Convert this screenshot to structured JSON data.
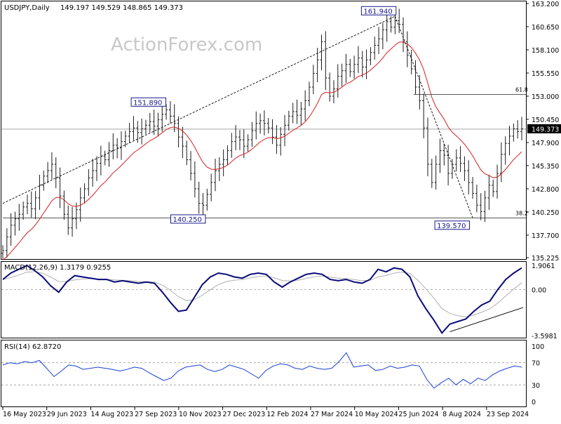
{
  "header": {
    "symbol": "USDJPY,Daily",
    "ohlc": "149.197 149.529 148.865 149.373"
  },
  "watermark": "ActionForex.com",
  "colors": {
    "bars": "#1a1a1a",
    "ema": "#d42020",
    "macd_line": "#0a0a7a",
    "signal_line": "#b0b0b0",
    "rsi_line": "#1a3fd6",
    "grid": "#9a9a9a",
    "label_box": "#1a1a8c",
    "price_tag_bg": "#000000",
    "watermark": "#c8c8c8"
  },
  "chart_data": [
    {
      "type": "candlestick-ohlc",
      "panel": "price",
      "ylim": [
        135.225,
        163.2
      ],
      "y_ticks": [
        "163.200",
        "160.650",
        "158.100",
        "155.550",
        "153.000",
        "150.450",
        "147.900",
        "145.350",
        "142.800",
        "140.250",
        "137.700",
        "135.225"
      ],
      "x_ticks": [
        "16 May 2023",
        "29 Jun 2023",
        "14 Aug 2023",
        "27 Sep 2023",
        "10 Nov 2023",
        "27 Dec 2023",
        "12 Feb 2024",
        "27 Mar 2024",
        "10 May 2024",
        "25 Jun 2024",
        "8 Aug 2024",
        "23 Sep 2024"
      ],
      "closes": [
        136.0,
        137.5,
        138.8,
        139.5,
        140.0,
        140.8,
        141.2,
        140.6,
        141.8,
        143.2,
        144.2,
        144.8,
        145.5,
        144.0,
        142.0,
        140.0,
        138.5,
        139.5,
        140.5,
        141.8,
        142.8,
        144.0,
        144.8,
        145.6,
        146.4,
        146.0,
        147.0,
        147.6,
        147.3,
        148.0,
        148.6,
        149.1,
        149.5,
        149.0,
        149.4,
        149.8,
        150.2,
        149.7,
        150.4,
        151.0,
        151.5,
        150.8,
        150.0,
        148.5,
        147.5,
        146.0,
        144.5,
        142.8,
        141.2,
        141.0,
        142.2,
        143.5,
        144.8,
        145.5,
        146.0,
        147.0,
        148.0,
        148.5,
        148.2,
        147.5,
        148.2,
        149.2,
        150.0,
        150.3,
        150.0,
        149.5,
        148.5,
        147.6,
        148.8,
        149.8,
        150.8,
        151.3,
        150.9,
        151.6,
        152.5,
        154.0,
        155.5,
        157.0,
        159.0,
        155.0,
        153.0,
        153.8,
        155.2,
        155.8,
        156.5,
        155.7,
        156.5,
        157.2,
        156.2,
        157.0,
        157.8,
        158.6,
        159.3,
        160.3,
        161.2,
        160.6,
        161.3,
        160.9,
        159.0,
        157.5,
        156.0,
        154.0,
        152.5,
        149.5,
        145.5,
        143.5,
        145.5,
        147.0,
        146.5,
        144.5,
        145.5,
        146.2,
        145.6,
        144.8,
        143.5,
        142.3,
        141.0,
        140.3,
        141.8,
        143.2,
        142.5,
        144.5,
        146.6,
        147.8,
        148.6,
        149.4,
        149.1,
        149.4
      ],
      "ema_period_label": "",
      "annotations": [
        {
          "text": "161.940",
          "kind": "box"
        },
        {
          "text": "151.890",
          "kind": "box"
        },
        {
          "text": "140.250",
          "kind": "box"
        },
        {
          "text": "139.570",
          "kind": "box"
        },
        {
          "text": "61.8",
          "kind": "fib"
        },
        {
          "text": "38.2",
          "kind": "fib"
        }
      ],
      "fib_levels": [
        {
          "label": "61.8",
          "value": 153.2
        },
        {
          "label": "38.2",
          "value": 139.6
        }
      ],
      "last_price": {
        "label": "149.373",
        "value": 149.373
      }
    },
    {
      "type": "line",
      "panel": "macd",
      "title": "MACD(12,26,9) 1.3179 0.9255",
      "ylim": [
        -3.5981,
        1.9061
      ],
      "y_ticks": [
        "1.9061",
        "0.00",
        "-3.5981"
      ],
      "macd_values": [
        0.8,
        1.3,
        1.6,
        1.9,
        1.5,
        1.0,
        0.3,
        -0.2,
        0.6,
        1.1,
        1.0,
        0.9,
        0.8,
        0.8,
        0.6,
        0.7,
        0.6,
        0.5,
        0.6,
        0.5,
        -0.2,
        -1.0,
        -1.7,
        -1.6,
        -0.6,
        0.4,
        1.0,
        1.3,
        1.2,
        1.0,
        0.9,
        1.2,
        1.3,
        1.2,
        0.6,
        0.2,
        0.6,
        0.9,
        1.2,
        1.3,
        1.2,
        0.8,
        0.7,
        0.8,
        0.6,
        0.5,
        0.8,
        1.6,
        1.4,
        1.7,
        1.6,
        1.0,
        -0.5,
        -1.5,
        -2.4,
        -3.4,
        -2.7,
        -2.5,
        -2.3,
        -1.7,
        -1.2,
        -0.9,
        0.0,
        0.8,
        1.3,
        1.7
      ],
      "trendline": true
    },
    {
      "type": "line",
      "panel": "rsi",
      "title": "RSI(14) 62.8720",
      "ylim": [
        0,
        100
      ],
      "y_ticks": [
        "100",
        "70",
        "30",
        "0"
      ],
      "levels": [
        70,
        30
      ],
      "rsi_values": [
        66,
        70,
        68,
        72,
        70,
        74,
        60,
        45,
        55,
        66,
        64,
        58,
        60,
        62,
        60,
        58,
        55,
        58,
        62,
        60,
        52,
        45,
        38,
        42,
        55,
        62,
        64,
        66,
        58,
        54,
        58,
        66,
        62,
        58,
        50,
        42,
        56,
        64,
        68,
        66,
        60,
        58,
        64,
        60,
        58,
        60,
        72,
        88,
        62,
        64,
        66,
        56,
        58,
        64,
        60,
        62,
        66,
        64,
        40,
        24,
        34,
        42,
        30,
        40,
        32,
        42,
        38,
        48,
        55,
        60,
        64,
        62
      ]
    }
  ]
}
